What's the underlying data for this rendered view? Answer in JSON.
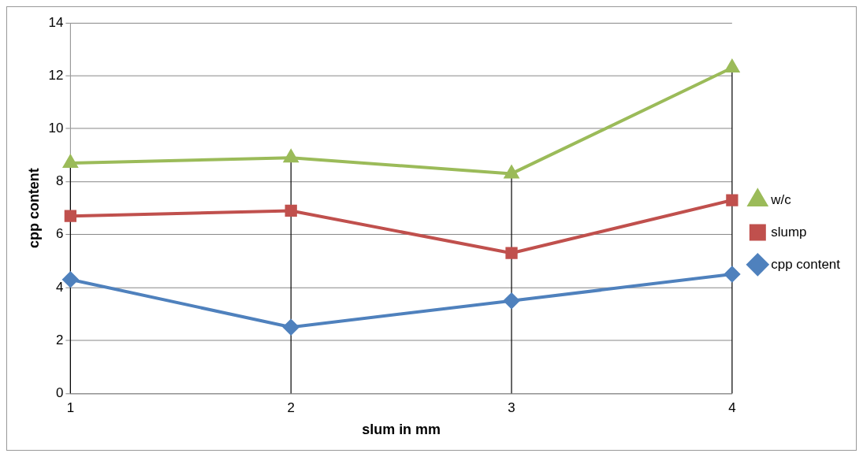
{
  "chart_data": {
    "type": "line",
    "xlabel": "slum in mm",
    "ylabel": "cpp content",
    "categories": [
      "1",
      "2",
      "3",
      "4"
    ],
    "series": [
      {
        "name": "w/c",
        "color": "#9bbb59",
        "marker": "triangle",
        "values": [
          8.7,
          8.9,
          8.3,
          12.3
        ]
      },
      {
        "name": "slump",
        "color": "#c0504d",
        "marker": "square",
        "values": [
          6.7,
          6.9,
          5.3,
          7.3
        ]
      },
      {
        "name": "cpp content",
        "color": "#4f81bd",
        "marker": "diamond",
        "values": [
          4.3,
          2.5,
          3.5,
          4.5
        ]
      }
    ],
    "ref_lines": [
      {
        "axis": "x",
        "value": "1",
        "color": "#000000"
      },
      {
        "axis": "x",
        "value": "2",
        "color": "#000000"
      },
      {
        "axis": "x",
        "value": "3",
        "color": "#000000"
      },
      {
        "axis": "x",
        "value": "4",
        "color": "#000000"
      }
    ],
    "ylim": [
      0,
      14
    ],
    "yticks": [
      0,
      2,
      4,
      6,
      8,
      10,
      12,
      14
    ],
    "grid": "y",
    "legend": "right"
  }
}
